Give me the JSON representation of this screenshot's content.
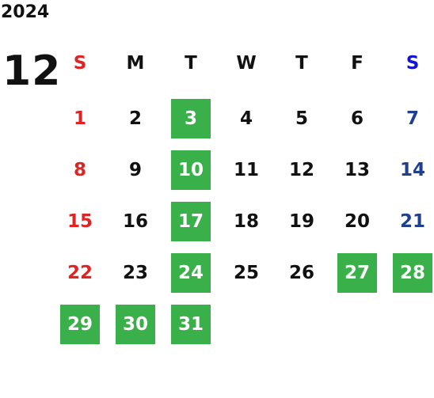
{
  "year": "2024",
  "month": "12",
  "weekdays": [
    "S",
    "M",
    "T",
    "W",
    "T",
    "F",
    "S"
  ],
  "weeks": [
    [
      {
        "day": 1
      },
      {
        "day": 2
      },
      {
        "day": 3,
        "highlight": true
      },
      {
        "day": 4
      },
      {
        "day": 5
      },
      {
        "day": 6
      },
      {
        "day": 7
      }
    ],
    [
      {
        "day": 8
      },
      {
        "day": 9
      },
      {
        "day": 10,
        "highlight": true
      },
      {
        "day": 11
      },
      {
        "day": 12
      },
      {
        "day": 13
      },
      {
        "day": 14
      }
    ],
    [
      {
        "day": 15
      },
      {
        "day": 16
      },
      {
        "day": 17,
        "highlight": true
      },
      {
        "day": 18
      },
      {
        "day": 19
      },
      {
        "day": 20
      },
      {
        "day": 21
      }
    ],
    [
      {
        "day": 22
      },
      {
        "day": 23
      },
      {
        "day": 24,
        "highlight": true
      },
      {
        "day": 25
      },
      {
        "day": 26
      },
      {
        "day": 27,
        "highlight": true
      },
      {
        "day": 28,
        "highlight": true
      }
    ],
    [
      {
        "day": 29,
        "highlight": true
      },
      {
        "day": 30,
        "highlight": true
      },
      {
        "day": 31,
        "highlight": true
      },
      null,
      null,
      null,
      null
    ]
  ]
}
